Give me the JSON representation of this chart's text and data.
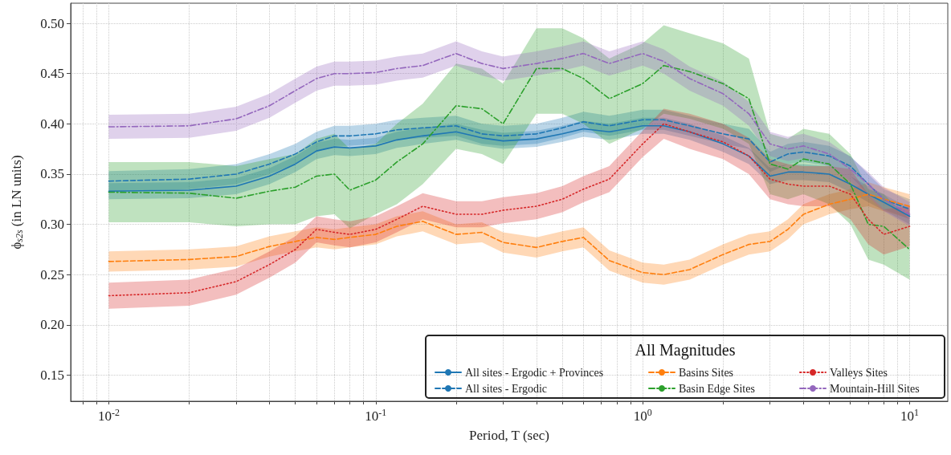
{
  "chart_data": {
    "type": "line",
    "xlabel": "Period, T (sec)",
    "ylabel": "ϕ$_{s2s}$ (in LN units)",
    "legend_title": "All Magnitudes",
    "legend": "bottom right",
    "grid": true,
    "log": "x",
    "xlim": [
      0.0072,
      13.9
    ],
    "ylim": [
      0.124,
      0.52
    ],
    "xticks": [
      {
        "value": 0.008,
        "label": null
      },
      {
        "value": 0.009,
        "label": null
      },
      {
        "value": 0.01,
        "label": "10$^{-2}$"
      },
      {
        "value": 0.02,
        "label": null
      },
      {
        "value": 0.03,
        "label": null
      },
      {
        "value": 0.04,
        "label": null
      },
      {
        "value": 0.05,
        "label": null
      },
      {
        "value": 0.06,
        "label": null
      },
      {
        "value": 0.07,
        "label": null
      },
      {
        "value": 0.08,
        "label": null
      },
      {
        "value": 0.09,
        "label": null
      },
      {
        "value": 0.1,
        "label": "10$^{-1}$"
      },
      {
        "value": 0.2,
        "label": null
      },
      {
        "value": 0.3,
        "label": null
      },
      {
        "value": 0.4,
        "label": null
      },
      {
        "value": 0.5,
        "label": null
      },
      {
        "value": 0.6,
        "label": null
      },
      {
        "value": 0.7,
        "label": null
      },
      {
        "value": 0.8,
        "label": null
      },
      {
        "value": 0.9,
        "label": null
      },
      {
        "value": 1,
        "label": "10$^{0}$"
      },
      {
        "value": 2,
        "label": null
      },
      {
        "value": 3,
        "label": null
      },
      {
        "value": 4,
        "label": null
      },
      {
        "value": 5,
        "label": null
      },
      {
        "value": 6,
        "label": null
      },
      {
        "value": 7,
        "label": null
      },
      {
        "value": 8,
        "label": null
      },
      {
        "value": 9,
        "label": null
      },
      {
        "value": 10,
        "label": "10$^{1}$"
      }
    ],
    "yticks": [
      {
        "value": 0.15,
        "label": "0.15"
      },
      {
        "value": 0.2,
        "label": "0.20"
      },
      {
        "value": 0.25,
        "label": "0.25"
      },
      {
        "value": 0.3,
        "label": "0.30"
      },
      {
        "value": 0.35,
        "label": "0.35"
      },
      {
        "value": 0.4,
        "label": "0.40"
      },
      {
        "value": 0.45,
        "label": "0.45"
      },
      {
        "value": 0.5,
        "label": "0.50"
      }
    ],
    "x": [
      0.01,
      0.02,
      0.03,
      0.04,
      0.05,
      0.06,
      0.07,
      0.08,
      0.1,
      0.12,
      0.15,
      0.2,
      0.25,
      0.3,
      0.4,
      0.5,
      0.6,
      0.75,
      1,
      1.2,
      1.5,
      2,
      2.5,
      3,
      3.5,
      4,
      5,
      6,
      7,
      8,
      10
    ],
    "series": [
      {
        "name": "All sites - Ergodic + Provinces",
        "color": "#1f77b4",
        "line_style": "solid",
        "values": [
          0.333,
          0.334,
          0.338,
          0.348,
          0.36,
          0.373,
          0.377,
          0.376,
          0.378,
          0.384,
          0.388,
          0.392,
          0.386,
          0.383,
          0.385,
          0.39,
          0.395,
          0.392,
          0.398,
          0.398,
          0.392,
          0.38,
          0.368,
          0.348,
          0.352,
          0.352,
          0.35,
          0.34,
          0.33,
          0.322,
          0.308
        ],
        "lower": [
          0.325,
          0.326,
          0.33,
          0.34,
          0.352,
          0.365,
          0.369,
          0.368,
          0.37,
          0.376,
          0.38,
          0.384,
          0.378,
          0.375,
          0.377,
          0.382,
          0.387,
          0.384,
          0.39,
          0.39,
          0.384,
          0.372,
          0.36,
          0.34,
          0.344,
          0.344,
          0.342,
          0.332,
          0.322,
          0.314,
          0.3
        ],
        "upper": [
          0.341,
          0.342,
          0.346,
          0.356,
          0.368,
          0.381,
          0.385,
          0.384,
          0.386,
          0.392,
          0.396,
          0.4,
          0.394,
          0.391,
          0.393,
          0.398,
          0.403,
          0.4,
          0.406,
          0.406,
          0.4,
          0.388,
          0.376,
          0.356,
          0.36,
          0.36,
          0.358,
          0.348,
          0.338,
          0.33,
          0.316
        ]
      },
      {
        "name": "All sites - Ergodic",
        "color": "#1f77b4",
        "line_style": "dashed",
        "values": [
          0.343,
          0.345,
          0.35,
          0.36,
          0.37,
          0.382,
          0.388,
          0.388,
          0.39,
          0.394,
          0.396,
          0.398,
          0.39,
          0.388,
          0.39,
          0.396,
          0.402,
          0.398,
          0.404,
          0.404,
          0.398,
          0.39,
          0.385,
          0.362,
          0.37,
          0.372,
          0.368,
          0.358,
          0.34,
          0.325,
          0.315
        ],
        "lower": [
          0.333,
          0.335,
          0.34,
          0.35,
          0.36,
          0.372,
          0.378,
          0.378,
          0.38,
          0.384,
          0.386,
          0.388,
          0.38,
          0.378,
          0.38,
          0.386,
          0.392,
          0.388,
          0.394,
          0.394,
          0.388,
          0.38,
          0.375,
          0.352,
          0.36,
          0.362,
          0.358,
          0.348,
          0.33,
          0.315,
          0.305
        ],
        "upper": [
          0.353,
          0.355,
          0.36,
          0.37,
          0.38,
          0.392,
          0.398,
          0.398,
          0.4,
          0.404,
          0.406,
          0.408,
          0.4,
          0.398,
          0.4,
          0.406,
          0.412,
          0.408,
          0.414,
          0.414,
          0.408,
          0.4,
          0.395,
          0.372,
          0.38,
          0.382,
          0.378,
          0.368,
          0.35,
          0.335,
          0.325
        ]
      },
      {
        "name": "Basins Sites",
        "color": "#ff7f0e",
        "line_style": "dashed",
        "values": [
          0.263,
          0.265,
          0.268,
          0.278,
          0.283,
          0.287,
          0.285,
          0.287,
          0.29,
          0.298,
          0.303,
          0.29,
          0.292,
          0.282,
          0.277,
          0.283,
          0.287,
          0.264,
          0.252,
          0.25,
          0.255,
          0.27,
          0.28,
          0.283,
          0.295,
          0.31,
          0.32,
          0.325,
          0.33,
          0.325,
          0.318
        ],
        "lower": [
          0.253,
          0.255,
          0.258,
          0.268,
          0.273,
          0.277,
          0.275,
          0.277,
          0.28,
          0.288,
          0.293,
          0.28,
          0.282,
          0.272,
          0.267,
          0.273,
          0.277,
          0.254,
          0.242,
          0.24,
          0.245,
          0.26,
          0.27,
          0.273,
          0.285,
          0.3,
          0.31,
          0.315,
          0.318,
          0.313,
          0.306
        ],
        "upper": [
          0.273,
          0.275,
          0.278,
          0.288,
          0.293,
          0.297,
          0.295,
          0.297,
          0.3,
          0.308,
          0.313,
          0.3,
          0.302,
          0.292,
          0.287,
          0.293,
          0.297,
          0.274,
          0.262,
          0.26,
          0.265,
          0.28,
          0.29,
          0.293,
          0.305,
          0.32,
          0.33,
          0.335,
          0.342,
          0.337,
          0.33
        ]
      },
      {
        "name": "Basin Edge Sites",
        "color": "#2ca02c",
        "line_style": "dashdot",
        "values": [
          0.332,
          0.331,
          0.326,
          0.333,
          0.337,
          0.348,
          0.35,
          0.334,
          0.344,
          0.362,
          0.38,
          0.418,
          0.415,
          0.4,
          0.455,
          0.455,
          0.445,
          0.425,
          0.44,
          0.458,
          0.452,
          0.44,
          0.425,
          0.36,
          0.355,
          0.365,
          0.36,
          0.34,
          0.3,
          0.298,
          0.275
        ],
        "lower": [
          0.302,
          0.302,
          0.298,
          0.3,
          0.3,
          0.308,
          0.31,
          0.296,
          0.31,
          0.32,
          0.34,
          0.375,
          0.37,
          0.36,
          0.41,
          0.41,
          0.4,
          0.38,
          0.395,
          0.41,
          0.405,
          0.395,
          0.38,
          0.33,
          0.325,
          0.33,
          0.32,
          0.3,
          0.265,
          0.26,
          0.245
        ],
        "upper": [
          0.362,
          0.362,
          0.358,
          0.365,
          0.37,
          0.385,
          0.39,
          0.375,
          0.38,
          0.4,
          0.42,
          0.46,
          0.455,
          0.44,
          0.495,
          0.495,
          0.485,
          0.465,
          0.48,
          0.498,
          0.49,
          0.48,
          0.465,
          0.39,
          0.385,
          0.395,
          0.39,
          0.37,
          0.335,
          0.33,
          0.305
        ]
      },
      {
        "name": "Valleys Sites",
        "color": "#d62728",
        "line_style": "dotted",
        "values": [
          0.229,
          0.232,
          0.243,
          0.26,
          0.275,
          0.295,
          0.292,
          0.29,
          0.295,
          0.305,
          0.318,
          0.31,
          0.31,
          0.314,
          0.318,
          0.325,
          0.335,
          0.345,
          0.38,
          0.4,
          0.392,
          0.382,
          0.368,
          0.345,
          0.34,
          0.338,
          0.338,
          0.33,
          0.305,
          0.29,
          0.298
        ],
        "lower": [
          0.216,
          0.219,
          0.23,
          0.247,
          0.262,
          0.282,
          0.279,
          0.277,
          0.282,
          0.292,
          0.305,
          0.297,
          0.297,
          0.301,
          0.305,
          0.312,
          0.322,
          0.332,
          0.367,
          0.385,
          0.375,
          0.365,
          0.35,
          0.325,
          0.32,
          0.318,
          0.318,
          0.305,
          0.28,
          0.27,
          0.278
        ],
        "upper": [
          0.242,
          0.245,
          0.256,
          0.273,
          0.288,
          0.308,
          0.305,
          0.303,
          0.308,
          0.318,
          0.331,
          0.323,
          0.323,
          0.327,
          0.331,
          0.338,
          0.348,
          0.358,
          0.393,
          0.415,
          0.41,
          0.4,
          0.386,
          0.365,
          0.36,
          0.358,
          0.358,
          0.355,
          0.33,
          0.315,
          0.318
        ]
      },
      {
        "name": "Mountain-Hill Sites",
        "color": "#9467bd",
        "line_style": "dashdot",
        "values": [
          0.397,
          0.398,
          0.405,
          0.418,
          0.433,
          0.445,
          0.45,
          0.45,
          0.451,
          0.455,
          0.458,
          0.47,
          0.46,
          0.455,
          0.46,
          0.465,
          0.47,
          0.46,
          0.47,
          0.462,
          0.445,
          0.43,
          0.41,
          0.38,
          0.375,
          0.378,
          0.37,
          0.355,
          0.34,
          0.325,
          0.31
        ],
        "lower": [
          0.385,
          0.386,
          0.393,
          0.406,
          0.421,
          0.433,
          0.438,
          0.438,
          0.439,
          0.443,
          0.446,
          0.458,
          0.448,
          0.443,
          0.448,
          0.453,
          0.458,
          0.448,
          0.458,
          0.45,
          0.433,
          0.418,
          0.398,
          0.368,
          0.363,
          0.366,
          0.358,
          0.343,
          0.328,
          0.313,
          0.298
        ],
        "upper": [
          0.409,
          0.41,
          0.417,
          0.43,
          0.445,
          0.457,
          0.462,
          0.462,
          0.463,
          0.467,
          0.47,
          0.482,
          0.472,
          0.467,
          0.472,
          0.477,
          0.482,
          0.472,
          0.482,
          0.474,
          0.457,
          0.442,
          0.422,
          0.392,
          0.387,
          0.39,
          0.382,
          0.367,
          0.352,
          0.337,
          0.322
        ]
      }
    ]
  }
}
